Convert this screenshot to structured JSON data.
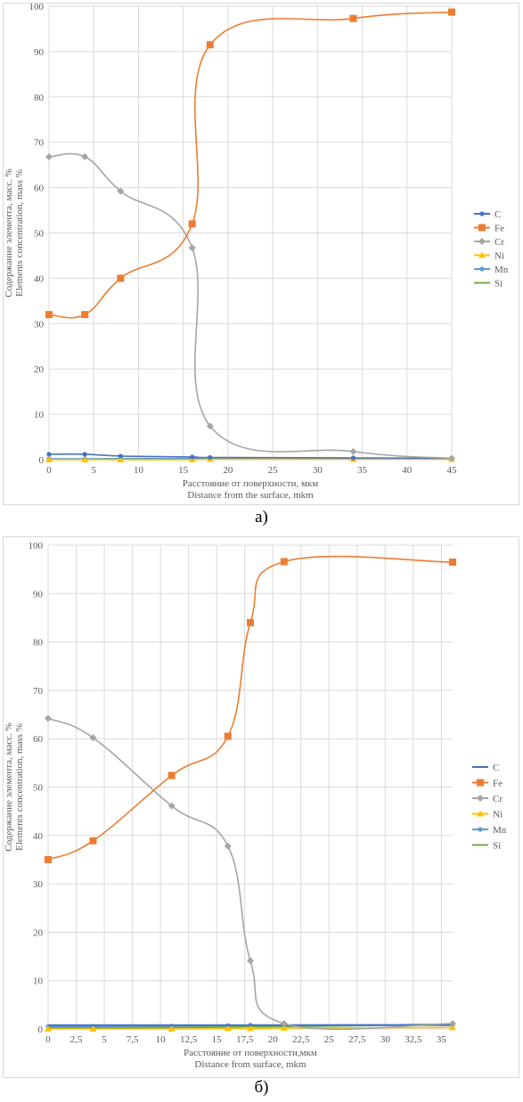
{
  "captions": [
    "а)",
    "б)"
  ],
  "colors": {
    "C": "#4472c4",
    "Fe": "#ed7d31",
    "Cr": "#a5a5a5",
    "Ni": "#ffc000",
    "Mn": "#5b9bd5",
    "Si": "#70ad47",
    "grid": "#d9d9d9",
    "text": "#595959"
  },
  "chart_data": [
    {
      "type": "line",
      "ylabel": [
        "Содержание элемента, масс. %",
        "Elements concentration, mass %"
      ],
      "xlabel": [
        "Расстояние от поверхности, мкм",
        "Distance from the surface, mkm"
      ],
      "xlim": [
        0,
        45
      ],
      "ylim": [
        0,
        100
      ],
      "xticks": [
        0,
        5,
        10,
        15,
        20,
        25,
        30,
        35,
        40,
        45
      ],
      "xtick_labels": [
        "0",
        "5",
        "10",
        "15",
        "20",
        "25",
        "30",
        "35",
        "40",
        "45"
      ],
      "yticks": [
        0,
        10,
        20,
        30,
        40,
        50,
        60,
        70,
        80,
        90,
        100
      ],
      "grid": true,
      "legend_position": "right",
      "series": [
        {
          "name": "C",
          "marker": "circle",
          "points": [
            [
              0,
              1.2
            ],
            [
              4,
              1.2
            ],
            [
              8,
              0.8
            ],
            [
              16,
              0.6
            ],
            [
              18,
              0.5
            ],
            [
              34,
              0.4
            ],
            [
              45,
              0.3
            ]
          ]
        },
        {
          "name": "Fe",
          "marker": "square",
          "points": [
            [
              0,
              32
            ],
            [
              4,
              32
            ],
            [
              8,
              40
            ],
            [
              16,
              52
            ],
            [
              18,
              91.5
            ],
            [
              34,
              97.3
            ],
            [
              45,
              98.7
            ]
          ]
        },
        {
          "name": "Cr",
          "marker": "diamond",
          "points": [
            [
              0,
              66.8
            ],
            [
              4,
              66.8
            ],
            [
              8,
              59.2
            ],
            [
              16,
              46.7
            ],
            [
              18,
              7.4
            ],
            [
              34,
              1.8
            ],
            [
              45,
              0.3
            ]
          ]
        },
        {
          "name": "Ni",
          "marker": "triangle",
          "points": [
            [
              0,
              0
            ],
            [
              4,
              0
            ],
            [
              8,
              0
            ],
            [
              16,
              0
            ],
            [
              18,
              0.1
            ],
            [
              34,
              0.1
            ],
            [
              45,
              0.1
            ]
          ]
        },
        {
          "name": "Mn",
          "marker": "circle",
          "points": [
            [
              0,
              0.2
            ],
            [
              4,
              0.2
            ],
            [
              8,
              0.2
            ],
            [
              16,
              0.3
            ],
            [
              18,
              0.3
            ],
            [
              34,
              0.3
            ],
            [
              45,
              0.3
            ]
          ]
        },
        {
          "name": "Si",
          "marker": "none",
          "points": [
            [
              0,
              0.1
            ],
            [
              4,
              0.1
            ],
            [
              8,
              0.2
            ],
            [
              16,
              0.2
            ],
            [
              18,
              0.2
            ],
            [
              34,
              0.2
            ],
            [
              45,
              0.2
            ]
          ]
        }
      ]
    },
    {
      "type": "line",
      "ylabel": [
        "Содержание элемента, масс. %",
        "Elements concentration, mass %"
      ],
      "xlabel": [
        "Расстояние от поверхности,мкм",
        "Distance from surface, mkm"
      ],
      "xlim": [
        0,
        36
      ],
      "ylim": [
        0,
        100
      ],
      "xticks": [
        0,
        2.5,
        5,
        7.5,
        10,
        12.5,
        15,
        17.5,
        20,
        22.5,
        25,
        27.5,
        30,
        32.5,
        35
      ],
      "xtick_labels": [
        "0",
        "2,5",
        "5",
        "7,5",
        "10",
        "12,5",
        "15",
        "17,5",
        "20",
        "22,5",
        "25",
        "27,5",
        "30",
        "32,5",
        "35"
      ],
      "yticks": [
        0,
        10,
        20,
        30,
        40,
        50,
        60,
        70,
        80,
        90,
        100
      ],
      "grid": true,
      "legend_position": "right",
      "series": [
        {
          "name": "C",
          "marker": "none",
          "points": [
            [
              0,
              0.8
            ],
            [
              4,
              0.8
            ],
            [
              11,
              0.8
            ],
            [
              16,
              0.8
            ],
            [
              18,
              0.8
            ],
            [
              21,
              0.8
            ],
            [
              36,
              0.8
            ]
          ]
        },
        {
          "name": "Fe",
          "marker": "square",
          "points": [
            [
              0,
              35
            ],
            [
              4,
              38.9
            ],
            [
              11,
              52.4
            ],
            [
              16,
              60.5
            ],
            [
              18,
              84
            ],
            [
              21,
              96.6
            ],
            [
              36,
              96.5
            ]
          ]
        },
        {
          "name": "Cr",
          "marker": "diamond",
          "points": [
            [
              0,
              64.2
            ],
            [
              4,
              60.2
            ],
            [
              11,
              46.1
            ],
            [
              16,
              37.8
            ],
            [
              18,
              14.1
            ],
            [
              21,
              1.1
            ],
            [
              36,
              1.1
            ]
          ]
        },
        {
          "name": "Ni",
          "marker": "triangle",
          "points": [
            [
              0,
              0
            ],
            [
              4,
              0
            ],
            [
              11,
              0
            ],
            [
              16,
              0.1
            ],
            [
              18,
              0.1
            ],
            [
              21,
              0.2
            ],
            [
              36,
              0.3
            ]
          ]
        },
        {
          "name": "Mn",
          "marker": "circle",
          "points": [
            [
              0,
              0.5
            ],
            [
              4,
              0.5
            ],
            [
              11,
              0.6
            ],
            [
              16,
              0.7
            ],
            [
              18,
              0.8
            ],
            [
              21,
              0.8
            ],
            [
              36,
              0.9
            ]
          ]
        },
        {
          "name": "Si",
          "marker": "none",
          "points": [
            [
              0,
              0.2
            ],
            [
              4,
              0.2
            ],
            [
              11,
              0.3
            ],
            [
              16,
              0.4
            ],
            [
              18,
              0.5
            ],
            [
              21,
              0.5
            ],
            [
              36,
              1.0
            ]
          ]
        }
      ]
    }
  ]
}
